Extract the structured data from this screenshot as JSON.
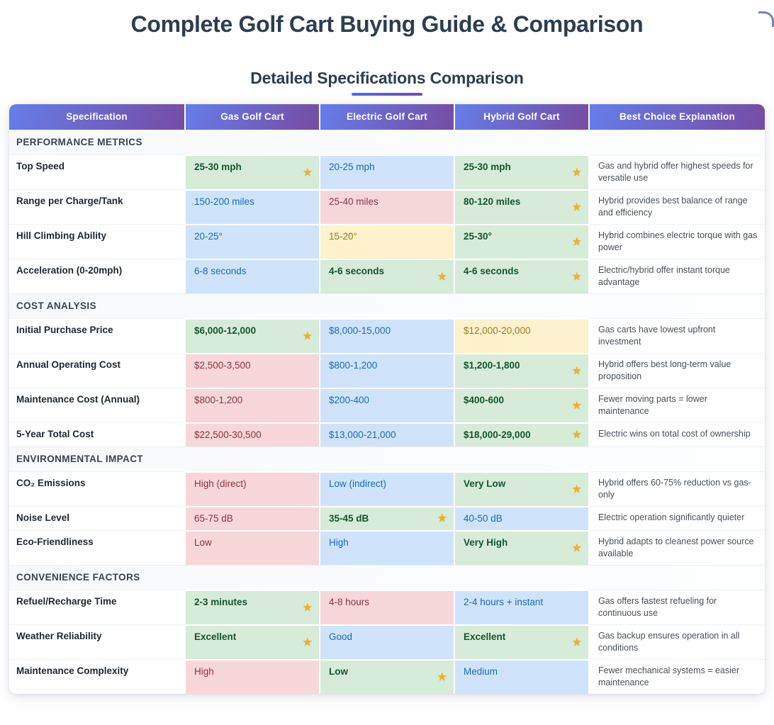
{
  "page": {
    "title": "Complete Golf Cart Buying Guide & Comparison",
    "subtitle": "Detailed Specifications Comparison"
  },
  "icons": {
    "best_choice_icon": "star-icon",
    "best_choice_glyph": "★"
  },
  "colors": {
    "header_gradient_start": "#667eea",
    "header_gradient_end": "#764ba2",
    "underline_gradient_start": "#4a6cf7",
    "underline_gradient_end": "#7447b8",
    "title_text": "#2c3e50",
    "star": "#f2b01e",
    "tone_green_bg": "#d6ecd9",
    "tone_green_text": "#15562b",
    "tone_blue_bg": "#cfe4fb",
    "tone_blue_text": "#1b67c0",
    "tone_red_bg": "#f8d7da",
    "tone_red_text": "#8a3440",
    "tone_yellow_bg": "#fdf2cd",
    "tone_yellow_text": "#9c7c17"
  },
  "table": {
    "columns": [
      "Specification",
      "Gas Golf Cart",
      "Electric Golf Cart",
      "Hybrid Golf Cart",
      "Best Choice Explanation"
    ],
    "sections": [
      {
        "title": "PERFORMANCE METRICS",
        "rows": [
          {
            "spec": "Top Speed",
            "gas": {
              "text": "25-30 mph",
              "tone": "green",
              "star": true
            },
            "electric": {
              "text": "20-25 mph",
              "tone": "blue",
              "star": false
            },
            "hybrid": {
              "text": "25-30 mph",
              "tone": "green",
              "star": true
            },
            "explanation": "Gas and hybrid offer highest speeds for versatile use"
          },
          {
            "spec": "Range per Charge/Tank",
            "gas": {
              "text": "150-200 miles",
              "tone": "blue",
              "star": false
            },
            "electric": {
              "text": "25-40 miles",
              "tone": "red",
              "star": false
            },
            "hybrid": {
              "text": "80-120 miles",
              "tone": "green",
              "star": true
            },
            "explanation": "Hybrid provides best balance of range and efficiency"
          },
          {
            "spec": "Hill Climbing Ability",
            "gas": {
              "text": "20-25°",
              "tone": "blue",
              "star": false
            },
            "electric": {
              "text": "15-20°",
              "tone": "yellow",
              "star": false
            },
            "hybrid": {
              "text": "25-30°",
              "tone": "green",
              "star": true
            },
            "explanation": "Hybrid combines electric torque with gas power"
          },
          {
            "spec": "Acceleration (0-20mph)",
            "gas": {
              "text": "6-8 seconds",
              "tone": "blue",
              "star": false
            },
            "electric": {
              "text": "4-6 seconds",
              "tone": "green",
              "star": true
            },
            "hybrid": {
              "text": "4-6 seconds",
              "tone": "green",
              "star": true
            },
            "explanation": "Electric/hybrid offer instant torque advantage"
          }
        ]
      },
      {
        "title": "COST ANALYSIS",
        "rows": [
          {
            "spec": "Initial Purchase Price",
            "gas": {
              "text": "$6,000-12,000",
              "tone": "green",
              "star": true
            },
            "electric": {
              "text": "$8,000-15,000",
              "tone": "blue",
              "star": false
            },
            "hybrid": {
              "text": "$12,000-20,000",
              "tone": "yellow",
              "star": false
            },
            "explanation": "Gas carts have lowest upfront investment"
          },
          {
            "spec": "Annual Operating Cost",
            "gas": {
              "text": "$2,500-3,500",
              "tone": "red",
              "star": false
            },
            "electric": {
              "text": "$800-1,200",
              "tone": "blue",
              "star": false
            },
            "hybrid": {
              "text": "$1,200-1,800",
              "tone": "green",
              "star": true
            },
            "explanation": "Hybrid offers best long-term value proposition"
          },
          {
            "spec": "Maintenance Cost (Annual)",
            "gas": {
              "text": "$800-1,200",
              "tone": "red",
              "star": false
            },
            "electric": {
              "text": "$200-400",
              "tone": "blue",
              "star": false
            },
            "hybrid": {
              "text": "$400-600",
              "tone": "green",
              "star": true
            },
            "explanation": "Fewer moving parts = lower maintenance"
          },
          {
            "spec": "5-Year Total Cost",
            "gas": {
              "text": "$22,500-30,500",
              "tone": "red",
              "star": false
            },
            "electric": {
              "text": "$13,000-21,000",
              "tone": "blue",
              "star": false
            },
            "hybrid": {
              "text": "$18,000-29,000",
              "tone": "green",
              "star": true
            },
            "explanation": "Electric wins on total cost of ownership"
          }
        ]
      },
      {
        "title": "ENVIRONMENTAL IMPACT",
        "rows": [
          {
            "spec": "CO₂ Emissions",
            "gas": {
              "text": "High (direct)",
              "tone": "red",
              "star": false
            },
            "electric": {
              "text": "Low (indirect)",
              "tone": "blue",
              "star": false
            },
            "hybrid": {
              "text": "Very Low",
              "tone": "green",
              "star": true
            },
            "explanation": "Hybrid offers 60-75% reduction vs gas-only"
          },
          {
            "spec": "Noise Level",
            "gas": {
              "text": "65-75 dB",
              "tone": "red",
              "star": false
            },
            "electric": {
              "text": "35-45 dB",
              "tone": "green",
              "star": true
            },
            "hybrid": {
              "text": "40-50 dB",
              "tone": "blue",
              "star": false
            },
            "explanation": "Electric operation significantly quieter"
          },
          {
            "spec": "Eco-Friendliness",
            "gas": {
              "text": "Low",
              "tone": "red",
              "star": false
            },
            "electric": {
              "text": "High",
              "tone": "blue",
              "star": false
            },
            "hybrid": {
              "text": "Very High",
              "tone": "green",
              "star": true
            },
            "explanation": "Hybrid adapts to cleanest power source available"
          }
        ]
      },
      {
        "title": "CONVENIENCE FACTORS",
        "rows": [
          {
            "spec": "Refuel/Recharge Time",
            "gas": {
              "text": "2-3 minutes",
              "tone": "green",
              "star": true
            },
            "electric": {
              "text": "4-8 hours",
              "tone": "red",
              "star": false
            },
            "hybrid": {
              "text": "2-4 hours + instant",
              "tone": "blue",
              "star": false
            },
            "explanation": "Gas offers fastest refueling for continuous use"
          },
          {
            "spec": "Weather Reliability",
            "gas": {
              "text": "Excellent",
              "tone": "green",
              "star": true
            },
            "electric": {
              "text": "Good",
              "tone": "blue",
              "star": false
            },
            "hybrid": {
              "text": "Excellent",
              "tone": "green",
              "star": true
            },
            "explanation": "Gas backup ensures operation in all conditions"
          },
          {
            "spec": "Maintenance Complexity",
            "gas": {
              "text": "High",
              "tone": "red",
              "star": false
            },
            "electric": {
              "text": "Low",
              "tone": "green",
              "star": true
            },
            "hybrid": {
              "text": "Medium",
              "tone": "blue",
              "star": false
            },
            "explanation": "Fewer mechanical systems = easier maintenance"
          }
        ]
      }
    ]
  }
}
